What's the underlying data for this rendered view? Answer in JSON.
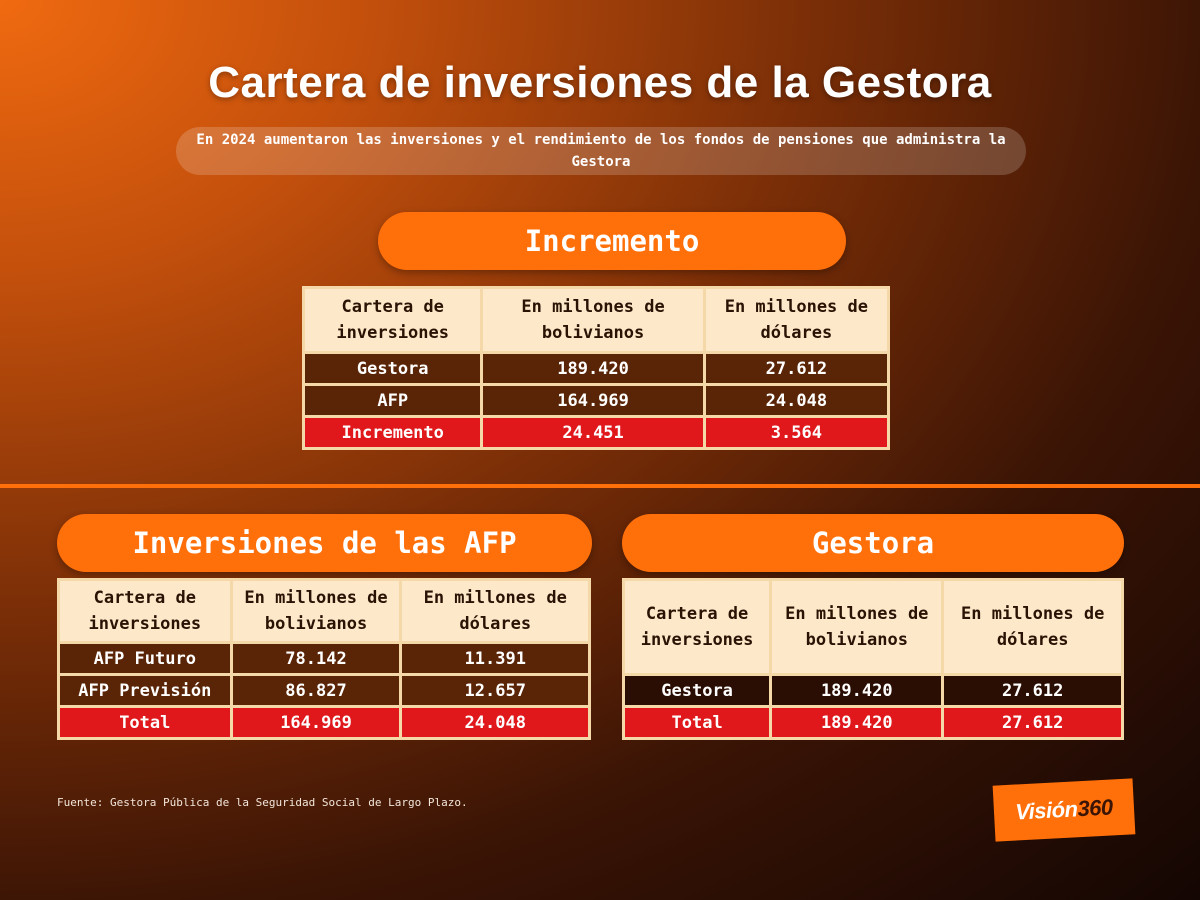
{
  "title": "Cartera de inversiones de la Gestora",
  "subtitle": "En 2024 aumentaron las inversiones y el rendimiento de los fondos de pensiones que administra la Gestora",
  "colors": {
    "accent": "#ff6f0a",
    "header_bg": "#fde9c9",
    "row_dark": "#5a2406",
    "row_total": "#e0181b"
  },
  "incremento": {
    "heading": "Incremento",
    "headers": [
      "Cartera de inversiones",
      "En millones de bolivianos",
      "En millones de dólares"
    ],
    "rows": [
      [
        "Gestora",
        "189.420",
        "27.612"
      ],
      [
        "AFP",
        "164.969",
        "24.048"
      ],
      [
        "Incremento",
        "24.451",
        "3.564"
      ]
    ]
  },
  "afp": {
    "heading": "Inversiones de las AFP",
    "headers": [
      "Cartera de inversiones",
      "En millones de bolivianos",
      "En millones de dólares"
    ],
    "rows": [
      [
        "AFP Futuro",
        "78.142",
        "11.391"
      ],
      [
        "AFP Previsión",
        "86.827",
        "12.657"
      ],
      [
        "Total",
        "164.969",
        "24.048"
      ]
    ]
  },
  "gestora": {
    "heading": "Gestora",
    "headers": [
      "Cartera de inversiones",
      "En millones de bolivianos",
      "En millones de dólares"
    ],
    "rows": [
      [
        "Gestora",
        "189.420",
        "27.612"
      ],
      [
        "Total",
        "189.420",
        "27.612"
      ]
    ]
  },
  "source": "Fuente: Gestora Pública de la Seguridad Social de Largo Plazo.",
  "logo": {
    "word": "Visión",
    "num": "360"
  }
}
